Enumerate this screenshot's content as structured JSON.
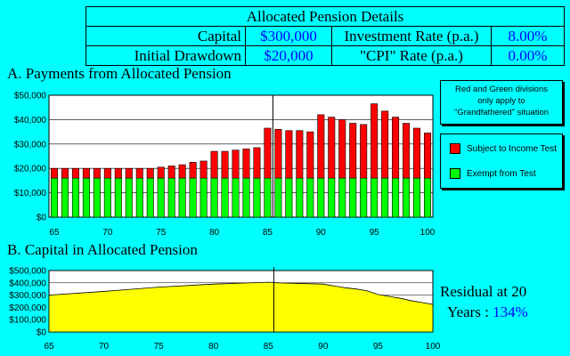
{
  "details": {
    "title": "Allocated Pension Details",
    "capital_label": "Capital",
    "capital_value": "$300,000",
    "investment_rate_label": "Investment Rate (p.a.)",
    "investment_rate_value": "8.00%",
    "drawdown_label": "Initial Drawdown",
    "drawdown_value": "$20,000",
    "cpi_label": "\"CPI\" Rate (p.a.)",
    "cpi_value": "0.00%"
  },
  "section_a_title": "A.  Payments from Allocated Pension",
  "section_b_title": "B.  Capital in Allocated Pension",
  "note": {
    "line1": "Red and Green divisions",
    "line2": "only apply to",
    "line3": "\"Grandfathered\" situation"
  },
  "legend": {
    "subject": "Subject to Income Test",
    "exempt": "Exempt from Test"
  },
  "residual": {
    "line1": "Residual at 20",
    "line2": "Years :",
    "value": "134%"
  },
  "colors": {
    "background": "#00FFFF",
    "plot_bg": "#FFFFFF",
    "subject": "#FF0000",
    "exempt": "#00FF00",
    "capital_fill": "#FFFF00",
    "value_text": "#0000FF"
  },
  "chart_data": [
    {
      "type": "bar",
      "stacked": true,
      "x": [
        65,
        66,
        67,
        68,
        69,
        70,
        71,
        72,
        73,
        74,
        75,
        76,
        77,
        78,
        79,
        80,
        81,
        82,
        83,
        84,
        85,
        86,
        87,
        88,
        89,
        90,
        91,
        92,
        93,
        94,
        95,
        96,
        97,
        98,
        99,
        100
      ],
      "series": [
        {
          "name": "Exempt from Test",
          "color": "#00FF00",
          "values": [
            16000,
            16000,
            16000,
            16000,
            16000,
            16000,
            16000,
            16000,
            16000,
            16000,
            16000,
            16000,
            16000,
            16000,
            16000,
            16000,
            16000,
            16000,
            16000,
            16000,
            16000,
            16000,
            16000,
            16000,
            16000,
            16000,
            16000,
            16000,
            16000,
            16000,
            16000,
            16000,
            16000,
            16000,
            16000,
            16000
          ]
        },
        {
          "name": "Subject to Income Test",
          "color": "#FF0000",
          "values": [
            4000,
            4000,
            4000,
            4000,
            4000,
            4000,
            4000,
            4000,
            4000,
            4000,
            4500,
            5000,
            5500,
            6500,
            7000,
            11000,
            11000,
            11500,
            12000,
            12500,
            20500,
            20000,
            19500,
            19500,
            19000,
            26000,
            25000,
            24000,
            22500,
            22000,
            30500,
            27500,
            25000,
            22500,
            20500,
            18500
          ]
        }
      ],
      "ylim": [
        0,
        50000
      ],
      "yticks": [
        "$0",
        "$10,000",
        "$20,000",
        "$30,000",
        "$40,000",
        "$50,000"
      ],
      "ytick_values": [
        0,
        10000,
        20000,
        30000,
        40000,
        50000
      ],
      "xticks": [
        65,
        70,
        75,
        80,
        85,
        90,
        95,
        100
      ],
      "marker_x": 85.5,
      "grid": true
    },
    {
      "type": "area",
      "x": [
        65,
        70,
        75,
        80,
        85,
        86,
        90,
        91,
        92,
        93,
        94,
        95,
        96,
        97,
        98,
        99,
        100
      ],
      "values": [
        300000,
        330000,
        365000,
        390000,
        405000,
        400000,
        390000,
        375000,
        360000,
        350000,
        335000,
        305000,
        290000,
        275000,
        255000,
        240000,
        225000
      ],
      "ylim": [
        0,
        500000
      ],
      "yticks": [
        "$0",
        "$100,000",
        "$200,000",
        "$300,000",
        "$400,000",
        "$500,000"
      ],
      "ytick_values": [
        0,
        100000,
        200000,
        300000,
        400000,
        500000
      ],
      "xticks": [
        65,
        70,
        75,
        80,
        85,
        90,
        95,
        100
      ],
      "marker_x": 85.5,
      "grid": true
    }
  ]
}
